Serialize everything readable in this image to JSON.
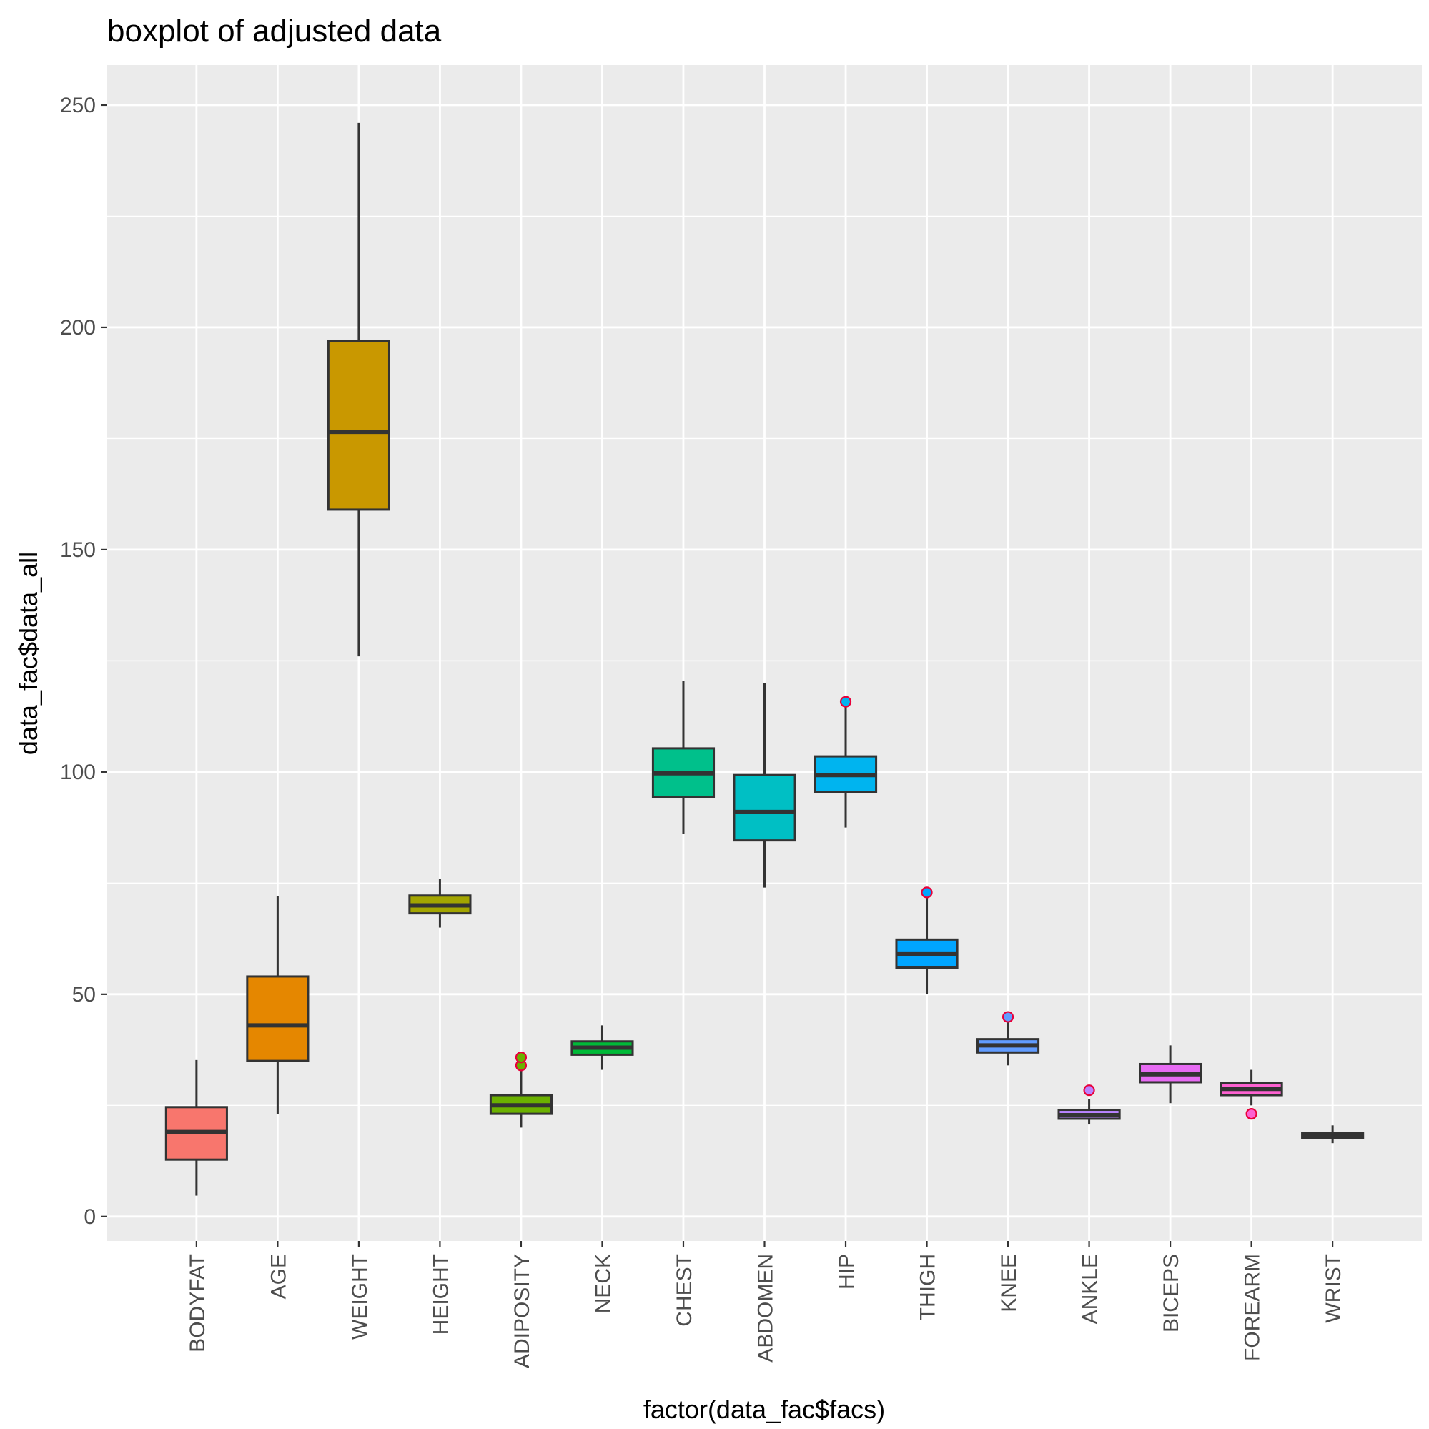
{
  "chart_data": {
    "type": "boxplot",
    "title": "boxplot of adjusted data",
    "xlabel": "factor(data_fac$facs)",
    "ylabel": "data_fac$data_all",
    "ylim": [
      -5.5,
      259
    ],
    "yticks": [
      0,
      50,
      100,
      150,
      200,
      250
    ],
    "grid": true,
    "legend": "none",
    "categories": [
      "BODYFAT",
      "AGE",
      "WEIGHT",
      "HEIGHT",
      "ADIPOSITY",
      "NECK",
      "CHEST",
      "ABDOMEN",
      "HIP",
      "THIGH",
      "KNEE",
      "ANKLE",
      "BICEPS",
      "FOREARM",
      "WRIST"
    ],
    "colors": [
      "#F8766D",
      "#E58700",
      "#C99800",
      "#A3A500",
      "#6BB100",
      "#00BA38",
      "#00C08B",
      "#00BFC4",
      "#00B4EF",
      "#00A5FF",
      "#619CFF",
      "#B983FF",
      "#E76BF3",
      "#FD61D1",
      "#FF67A4"
    ],
    "boxes": [
      {
        "min": 4.7,
        "q1": 12.8,
        "median": 19.0,
        "q3": 24.6,
        "max": 35.2,
        "outliers": []
      },
      {
        "min": 23.0,
        "q1": 35.0,
        "median": 43.0,
        "q3": 54.0,
        "max": 72.0,
        "outliers": []
      },
      {
        "min": 126.0,
        "q1": 159.0,
        "median": 176.5,
        "q3": 197.0,
        "max": 246.0,
        "outliers": []
      },
      {
        "min": 65.0,
        "q1": 68.2,
        "median": 70.0,
        "q3": 72.2,
        "max": 76.0,
        "outliers": []
      },
      {
        "min": 20.0,
        "q1": 23.1,
        "median": 25.0,
        "q3": 27.3,
        "max": 33.2,
        "outliers": [
          34.0,
          35.8
        ]
      },
      {
        "min": 33.0,
        "q1": 36.4,
        "median": 38.0,
        "q3": 39.4,
        "max": 43.0,
        "outliers": []
      },
      {
        "min": 86.0,
        "q1": 94.4,
        "median": 99.7,
        "q3": 105.3,
        "max": 120.5,
        "outliers": []
      },
      {
        "min": 74.0,
        "q1": 84.6,
        "median": 91.0,
        "q3": 99.3,
        "max": 120.0,
        "outliers": []
      },
      {
        "min": 87.5,
        "q1": 95.5,
        "median": 99.3,
        "q3": 103.5,
        "max": 115.0,
        "outliers": [
          115.8
        ]
      },
      {
        "min": 50.0,
        "q1": 56.0,
        "median": 59.0,
        "q3": 62.3,
        "max": 72.5,
        "outliers": [
          72.9
        ]
      },
      {
        "min": 34.0,
        "q1": 36.9,
        "median": 38.5,
        "q3": 39.9,
        "max": 44.0,
        "outliers": [
          44.9
        ]
      },
      {
        "min": 20.7,
        "q1": 22.0,
        "median": 22.8,
        "q3": 24.0,
        "max": 26.5,
        "outliers": [
          28.4
        ]
      },
      {
        "min": 25.5,
        "q1": 30.2,
        "median": 32.0,
        "q3": 34.3,
        "max": 38.5,
        "outliers": []
      },
      {
        "min": 25.0,
        "q1": 27.3,
        "median": 28.7,
        "q3": 30.0,
        "max": 33.0,
        "outliers": [
          23.1
        ]
      },
      {
        "min": 16.5,
        "q1": 17.6,
        "median": 18.3,
        "q3": 18.8,
        "max": 20.5,
        "outliers": []
      }
    ]
  }
}
